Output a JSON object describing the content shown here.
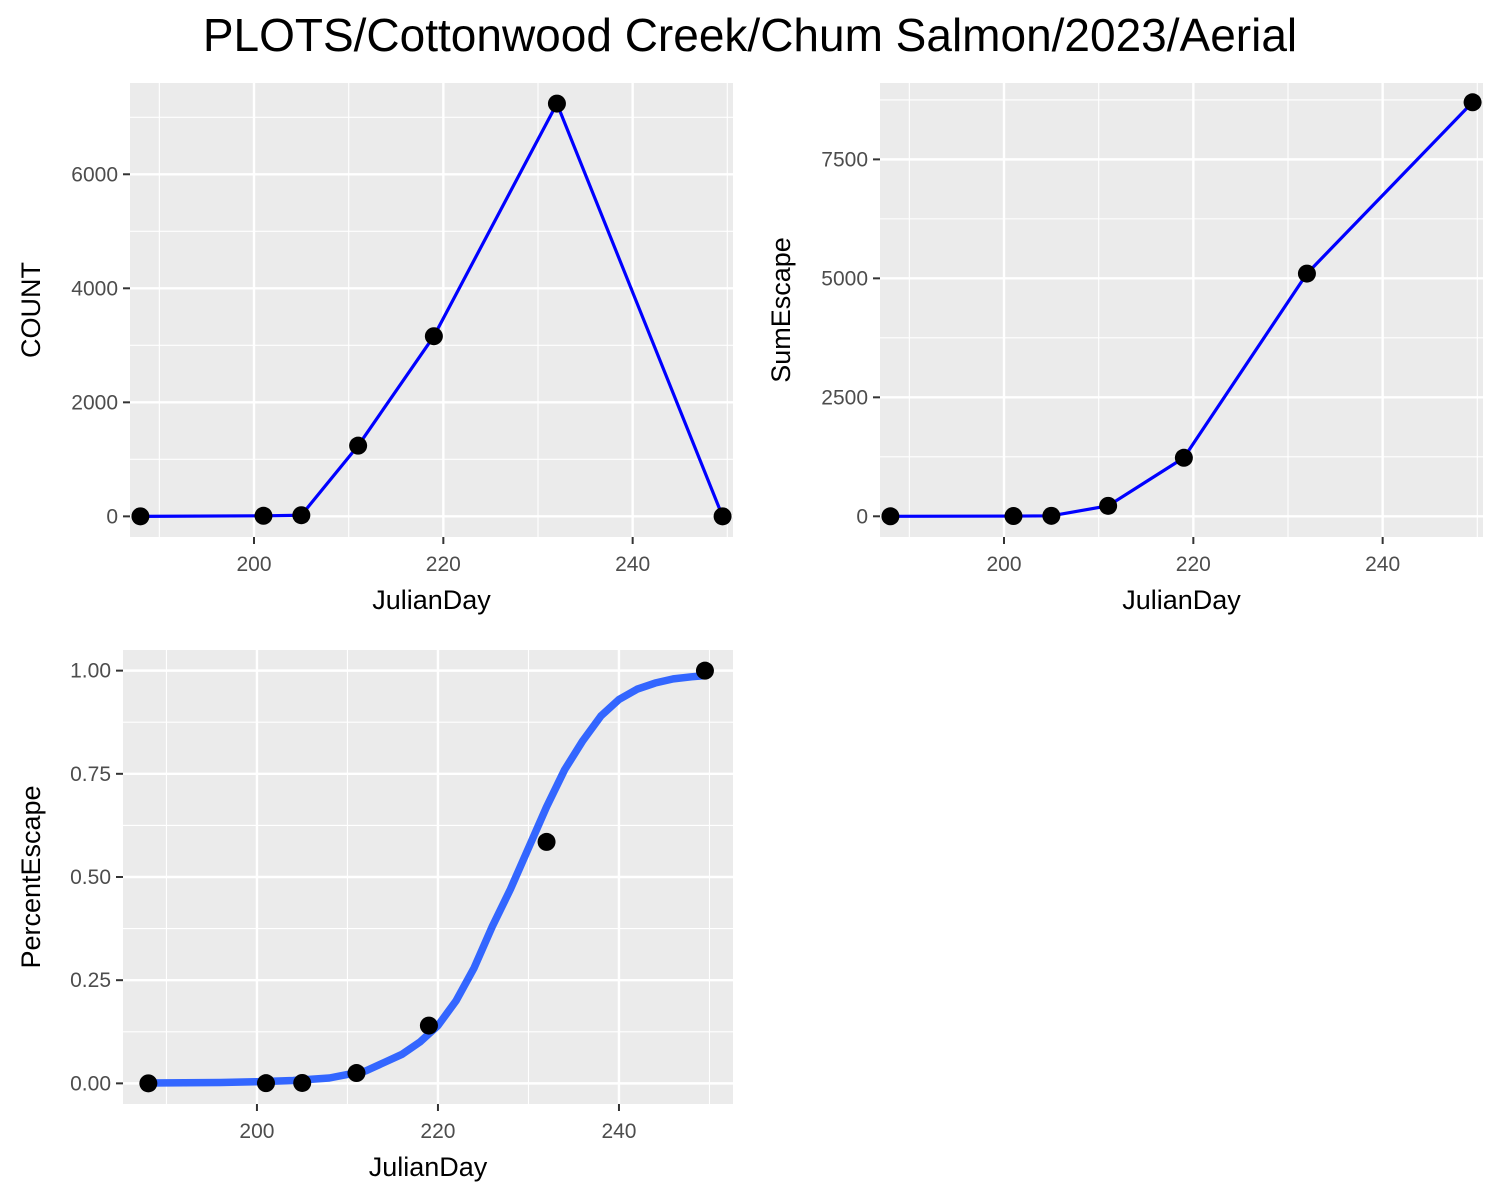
{
  "figure_title": "PLOTS/Cottonwood Creek/Chum Salmon/2023/Aerial",
  "colors": {
    "panel_bg": "#EBEBEB",
    "grid": "#FFFFFF",
    "line": "#0000FF",
    "smooth": "#3366FF",
    "point": "#000000",
    "tick_text": "#4D4D4D"
  },
  "chart_data": [
    {
      "type": "line",
      "xlabel": "JulianDay",
      "ylabel": "COUNT",
      "xlim": [
        186.9,
        250.6
      ],
      "ylim": [
        -362,
        7601
      ],
      "x_ticks": [
        200,
        220,
        240
      ],
      "x_tick_labels": [
        "200",
        "220",
        "240"
      ],
      "y_ticks": [
        0,
        2000,
        4000,
        6000
      ],
      "y_tick_labels": [
        "0",
        "2000",
        "4000",
        "6000"
      ],
      "grid": true,
      "series": [
        {
          "x": [
            188,
            201,
            205,
            211,
            219,
            232,
            249.5
          ],
          "y": [
            0,
            10,
            20,
            1240,
            3160,
            7240,
            0
          ]
        }
      ]
    },
    {
      "type": "line",
      "xlabel": "JulianDay",
      "ylabel": "SumEscape",
      "xlim": [
        186.9,
        250.6
      ],
      "ylim": [
        -435,
        9105
      ],
      "x_ticks": [
        200,
        220,
        240
      ],
      "x_tick_labels": [
        "200",
        "220",
        "240"
      ],
      "y_ticks": [
        0,
        2500,
        5000,
        7500
      ],
      "y_tick_labels": [
        "0",
        "2500",
        "5000",
        "7500"
      ],
      "grid": true,
      "series": [
        {
          "x": [
            188,
            201,
            205,
            211,
            219,
            232,
            249.5
          ],
          "y": [
            0,
            5,
            10,
            220,
            1230,
            5100,
            8700
          ]
        }
      ]
    },
    {
      "type": "scatter",
      "xlabel": "JulianDay",
      "ylabel": "PercentEscape",
      "xlim": [
        185.2,
        252.6
      ],
      "ylim": [
        -0.05,
        1.05
      ],
      "x_ticks": [
        200,
        220,
        240
      ],
      "x_tick_labels": [
        "200",
        "220",
        "240"
      ],
      "y_ticks": [
        0,
        0.25,
        0.5,
        0.75,
        1
      ],
      "y_tick_labels": [
        "0.00",
        "0.25",
        "0.50",
        "0.75",
        "1.00"
      ],
      "grid": true,
      "series": [
        {
          "x": [
            188,
            201,
            205,
            211,
            219,
            232,
            249.5
          ],
          "y": [
            0,
            0.0005,
            0.001,
            0.025,
            0.14,
            0.585,
            1.0
          ]
        }
      ],
      "fitted_curve": {
        "x": [
          188,
          192,
          196,
          200,
          204,
          208,
          212,
          216,
          218,
          220,
          222,
          224,
          226,
          228,
          230,
          232,
          234,
          236,
          238,
          240,
          242,
          244,
          246,
          248,
          249.5
        ],
        "y": [
          0.001,
          0.0015,
          0.002,
          0.004,
          0.007,
          0.013,
          0.03,
          0.07,
          0.1,
          0.14,
          0.2,
          0.28,
          0.38,
          0.47,
          0.57,
          0.67,
          0.76,
          0.83,
          0.89,
          0.93,
          0.955,
          0.97,
          0.98,
          0.985,
          0.988
        ]
      }
    }
  ]
}
